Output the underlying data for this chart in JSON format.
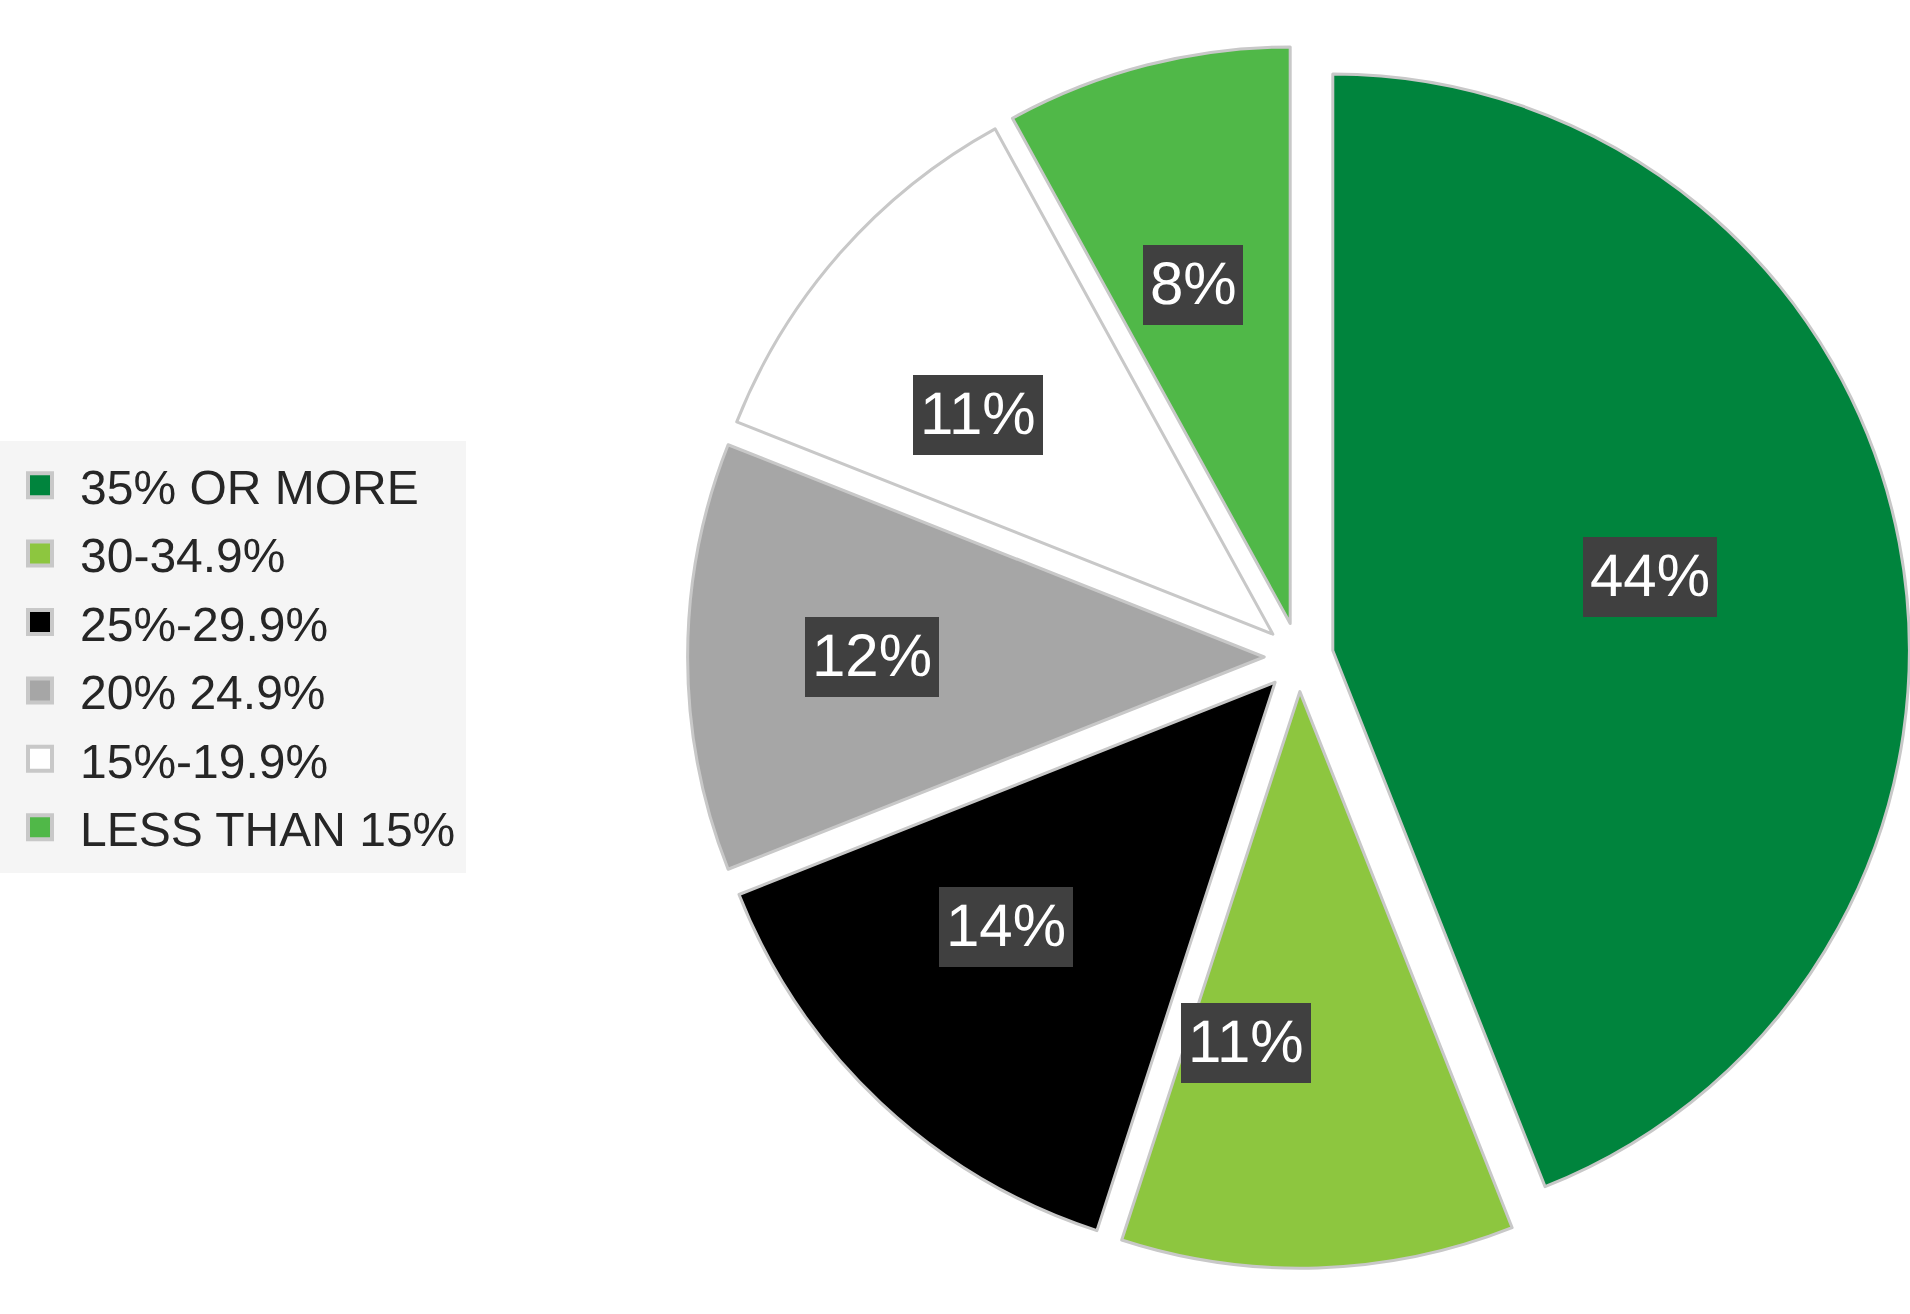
{
  "chart_data": {
    "type": "pie",
    "categories": [
      "35% OR MORE",
      "30-34.9%",
      "25%-29.9%",
      "20% 24.9%",
      "15%-19.9%",
      "LESS THAN 15%"
    ],
    "values": [
      44,
      11,
      14,
      12,
      11,
      8
    ],
    "colors": [
      "#00843d",
      "#8dc63f",
      "#000000",
      "#a6a6a6",
      "#ffffff",
      "#50b848"
    ],
    "value_labels": [
      "44%",
      "11%",
      "14%",
      "12%",
      "11%",
      "8%"
    ],
    "legend": "left"
  }
}
